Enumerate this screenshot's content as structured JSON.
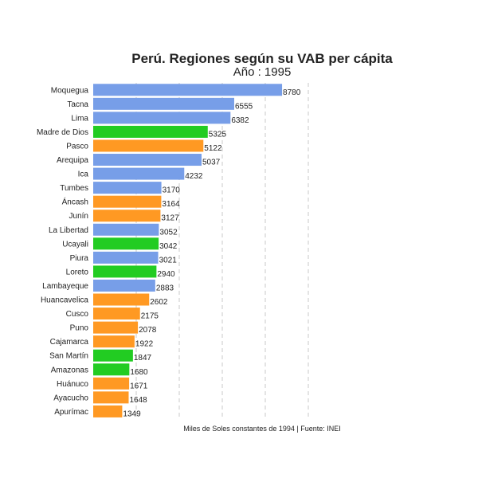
{
  "chart_data": {
    "type": "bar",
    "orientation": "horizontal",
    "title": "Perú. Regiones según su VAB per cápita",
    "subtitle": "Año : 1995",
    "caption": "Miles de Soles constantes de 1994 | Fuente: INEI",
    "xlabel": "",
    "ylabel": "",
    "xlim": [
      0,
      10000
    ],
    "grid": "vertical-dashed",
    "legend": "none",
    "colors": {
      "costa": "#779ee8",
      "sierra": "#ff9923",
      "selva": "#22cc22"
    },
    "bars": [
      {
        "category": "Moquegua",
        "value": 8780,
        "group": "costa"
      },
      {
        "category": "Tacna",
        "value": 6555,
        "group": "costa"
      },
      {
        "category": "Lima",
        "value": 6382,
        "group": "costa"
      },
      {
        "category": "Madre de Dios",
        "value": 5325,
        "group": "selva"
      },
      {
        "category": "Pasco",
        "value": 5122,
        "group": "sierra"
      },
      {
        "category": "Arequipa",
        "value": 5037,
        "group": "costa"
      },
      {
        "category": "Ica",
        "value": 4232,
        "group": "costa"
      },
      {
        "category": "Tumbes",
        "value": 3170,
        "group": "costa"
      },
      {
        "category": "Áncash",
        "value": 3164,
        "group": "sierra"
      },
      {
        "category": "Junín",
        "value": 3127,
        "group": "sierra"
      },
      {
        "category": "La Libertad",
        "value": 3052,
        "group": "costa"
      },
      {
        "category": "Ucayali",
        "value": 3042,
        "group": "selva"
      },
      {
        "category": "Piura",
        "value": 3021,
        "group": "costa"
      },
      {
        "category": "Loreto",
        "value": 2940,
        "group": "selva"
      },
      {
        "category": "Lambayeque",
        "value": 2883,
        "group": "costa"
      },
      {
        "category": "Huancavelica",
        "value": 2602,
        "group": "sierra"
      },
      {
        "category": "Cusco",
        "value": 2175,
        "group": "sierra"
      },
      {
        "category": "Puno",
        "value": 2078,
        "group": "sierra"
      },
      {
        "category": "Cajamarca",
        "value": 1922,
        "group": "sierra"
      },
      {
        "category": "San Martín",
        "value": 1847,
        "group": "selva"
      },
      {
        "category": "Amazonas",
        "value": 1680,
        "group": "selva"
      },
      {
        "category": "Huánuco",
        "value": 1671,
        "group": "sierra"
      },
      {
        "category": "Ayacucho",
        "value": 1648,
        "group": "sierra"
      },
      {
        "category": "Apurímac",
        "value": 1349,
        "group": "sierra"
      }
    ]
  }
}
